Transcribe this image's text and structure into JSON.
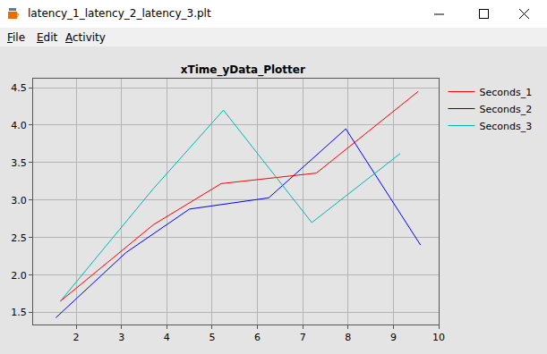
{
  "window": {
    "title": "latency_1_latency_2_latency_3.plt",
    "menu": [
      "File",
      "Edit",
      "Activity"
    ]
  },
  "chart_data": {
    "type": "line",
    "title": "xTime_yData_Plotter",
    "series": [
      {
        "name": "Seconds_1",
        "color": "#ff0000",
        "x": [
          1.65,
          3.7,
          5.2,
          7.3,
          9.55
        ],
        "values": [
          1.65,
          2.67,
          3.22,
          3.36,
          4.45
        ]
      },
      {
        "name": "Seconds_2",
        "color": "#0000ff",
        "x": [
          1.55,
          3.1,
          4.5,
          6.25,
          7.95,
          9.6
        ],
        "values": [
          1.43,
          2.3,
          2.88,
          3.03,
          3.95,
          2.4
        ]
      },
      {
        "name": "Seconds_3",
        "color": "#00b4b4",
        "x": [
          1.65,
          3.7,
          5.25,
          7.2,
          9.15
        ],
        "values": [
          1.65,
          3.15,
          4.2,
          2.7,
          3.62
        ]
      }
    ],
    "xlim": [
      1.05,
      10
    ],
    "xticks": [
      2,
      3,
      4,
      5,
      6,
      7,
      8,
      9,
      10
    ],
    "ylim": [
      1.34,
      4.62
    ],
    "yticks": [
      1.5,
      {
        "value": 2,
        "label": "2.0"
      },
      2.5,
      {
        "value": 3,
        "label": "3.0"
      },
      3.5,
      {
        "value": 4,
        "label": "4.0"
      },
      4.5
    ],
    "grid": true,
    "legend": "upper right"
  }
}
